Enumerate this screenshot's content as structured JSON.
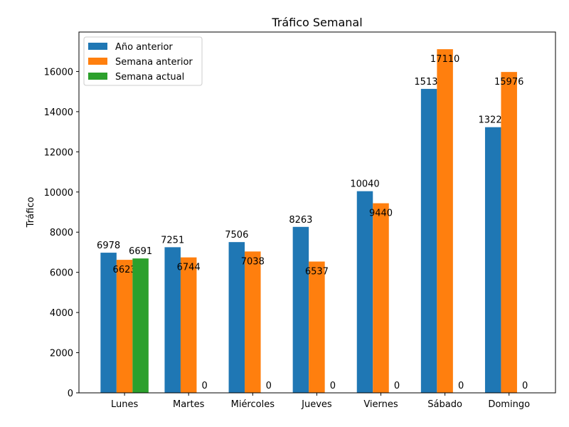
{
  "chart_data": {
    "type": "bar",
    "title": "Tráfico Semanal",
    "xlabel": "",
    "ylabel": "Tráfico",
    "categories": [
      "Lunes",
      "Martes",
      "Miércoles",
      "Jueves",
      "Viernes",
      "Sábado",
      "Domingo"
    ],
    "series": [
      {
        "name": "Año anterior",
        "color": "#1f77b4",
        "values": [
          6978,
          7251,
          7506,
          8263,
          10040,
          15134,
          13227
        ]
      },
      {
        "name": "Semana anterior",
        "color": "#ff7f0e",
        "values": [
          6623,
          6744,
          7038,
          6537,
          9440,
          17110,
          15976
        ]
      },
      {
        "name": "Semana actual",
        "color": "#2ca02c",
        "values": [
          6691,
          0,
          0,
          0,
          0,
          0,
          0
        ]
      }
    ],
    "ylim": [
      0,
      17965
    ],
    "yticks": [
      0,
      2000,
      4000,
      6000,
      8000,
      10000,
      12000,
      14000,
      16000
    ],
    "grid": false,
    "legend_position": "top-left"
  }
}
